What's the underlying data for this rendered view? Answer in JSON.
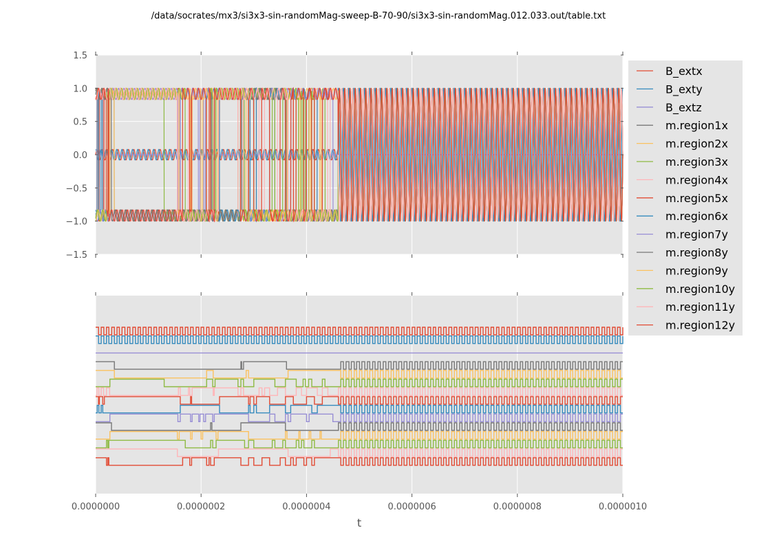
{
  "chart_data": [
    {
      "type": "line",
      "panel": "top",
      "title": "/data/socrates/mx3/si3x3-sin-randomMag-sweep-B-70-90/si3x3-sin-randomMag.012.033.out/table.txt",
      "xlabel": "t",
      "ylabel": "",
      "xlim": [
        0,
        1e-06
      ],
      "ylim": [
        -1.5,
        1.5
      ],
      "yticks": [
        "1.5",
        "1.0",
        "0.5",
        "0.0",
        "−0.5",
        "−1.0",
        "−1.5"
      ],
      "ytick_values": [
        1.5,
        1.0,
        0.5,
        0.0,
        -0.5,
        -1.0,
        -1.5
      ],
      "grid": true,
      "description": "Magnetization components switching between approx +1 and -1 with oscillation; B_ext components oscillate around 0 with amplitude ~0.08 until t~4.6e-7, after which all signals oscillate fully between -1 and 1",
      "series_summary": [
        {
          "name": "B_extx",
          "range": [
            -0.08,
            0.08
          ],
          "periods_per_us": 100
        },
        {
          "name": "B_exty",
          "range": [
            -0.08,
            0.08
          ],
          "periods_per_us": 100
        },
        {
          "name": "B_extz",
          "range": [
            0.0,
            0.0
          ]
        },
        {
          "name": "m.region*",
          "range": [
            -1.0,
            1.0
          ],
          "note": "bistable switching before 4.6e-7 s, full oscillation afterwards"
        }
      ]
    },
    {
      "type": "line",
      "panel": "bottom",
      "xlabel": "t",
      "xlim": [
        0,
        1e-06
      ],
      "xticks": [
        "0.0000000",
        "0.0000002",
        "0.0000004",
        "0.0000006",
        "0.0000008",
        "0.0000010"
      ],
      "xtick_values": [
        0,
        2e-07,
        4e-07,
        6e-07,
        8e-07,
        1e-06
      ],
      "grid": true,
      "description": "Digital (sign) traces of each signal, vertically offset",
      "oscillation_onset_t": 4.6e-07,
      "oscillation_periods_per_us": 100,
      "traces": [
        {
          "name": "B_extx",
          "level_order": 0,
          "mode": "clock"
        },
        {
          "name": "B_exty",
          "level_order": 1,
          "mode": "clock"
        },
        {
          "name": "B_extz",
          "level_order": 2,
          "mode": "const"
        },
        {
          "name": "m.region1x",
          "level_order": 3,
          "initial": 1,
          "switch_times": [
            3.5e-08,
            2.75e-07,
            2.77e-07,
            2.8e-07,
            3.62e-07,
            4.7e-07
          ]
        },
        {
          "name": "m.region2x",
          "level_order": 4,
          "initial": 1,
          "switch_times": [
            3.5e-08,
            2.1e-07,
            2.23e-07,
            2.85e-07,
            2.9e-07,
            3.65e-07,
            4.7e-07
          ]
        },
        {
          "name": "m.region3x",
          "level_order": 5,
          "initial": 0,
          "switch_times": [
            2.7e-08,
            1.3e-07,
            2.1e-07,
            2.22e-07,
            2.26e-07,
            2.7e-07,
            2.75e-07,
            2.8e-07,
            3e-07,
            3.4e-07,
            3.6e-07,
            3.8e-07,
            3.93e-07,
            3.98e-07,
            4.04e-07,
            4.1e-07,
            4.3e-07,
            4.35e-07,
            4.7e-07
          ]
        },
        {
          "name": "m.region4x",
          "level_order": 6,
          "initial": 0,
          "switch_times": [
            2e-09,
            6e-09,
            1e-08,
            1.5e-08,
            2e-08,
            2.6e-08,
            1.57e-07,
            1.6e-07,
            1.76e-07,
            1.78e-07,
            1.83e-07,
            2.23e-07,
            2.25e-07,
            2.7e-07,
            2.75e-07,
            2.8e-07,
            3.1e-07,
            3.15e-07,
            3.2e-07,
            3.3e-07,
            3.45e-07,
            3.6e-07,
            3.8e-07,
            3.9e-07,
            4e-07,
            4.2e-07,
            4.3e-07,
            4.4e-07,
            4.6e-07
          ]
        },
        {
          "name": "m.region5x",
          "level_order": 7,
          "initial": 1,
          "switch_times": [
            5e-09,
            7e-09,
            1.3e-08,
            1.6e-08,
            1.6e-07,
            1.8e-07,
            1.82e-07,
            2.35e-07,
            2.9e-07,
            2.93e-07,
            3e-07,
            3.05e-07,
            3.3e-07,
            3.6e-07,
            3.75e-07,
            4e-07,
            4.15e-07,
            4.3e-07,
            4.7e-07
          ]
        },
        {
          "name": "m.region6x",
          "level_order": 8,
          "initial": 0,
          "switch_times": [
            3e-09,
            6e-09,
            1e-08,
            1.3e-08,
            1.6e-07,
            2.35e-07,
            2.9e-07,
            2.93e-07,
            3e-07,
            3.05e-07,
            3.3e-07,
            3.6e-07,
            3.7e-07,
            4.1e-07,
            4.2e-07,
            4.6e-07
          ]
        },
        {
          "name": "m.region7y",
          "level_order": 9,
          "initial": 0,
          "switch_times": [
            2.7e-08,
            1.56e-07,
            1.6e-07,
            1.8e-07,
            1.83e-07,
            1.95e-07,
            1.98e-07,
            2.05e-07,
            2.08e-07,
            2.22e-07,
            2.25e-07,
            2.9e-07,
            3.3e-07,
            3.4e-07,
            3.6e-07,
            3.65e-07,
            3.7e-07,
            4e-07,
            4.05e-07,
            4.5e-07,
            4.6e-07
          ]
        },
        {
          "name": "m.region8y",
          "level_order": 10,
          "initial": 1,
          "switch_times": [
            3e-08,
            2.18e-07,
            2.2e-07,
            2.75e-07,
            3.6e-07,
            4.7e-07
          ]
        },
        {
          "name": "m.region9y",
          "level_order": 11,
          "initial": 0,
          "switch_times": [
            2.7e-08,
            1.55e-07,
            1.58e-07,
            1.8e-07,
            1.83e-07,
            2e-07,
            2.03e-07,
            2.28e-07,
            2.32e-07,
            2.9e-07,
            3.6e-07,
            3.63e-07,
            3.85e-07,
            3.88e-07,
            4.05e-07,
            4.08e-07,
            4.25e-07,
            4.28e-07,
            4.6e-07
          ]
        },
        {
          "name": "m.region10y",
          "level_order": 12,
          "initial": 0,
          "switch_times": [
            2e-08,
            2.3e-08,
            2.5e-08,
            1.7e-07,
            2.18e-07,
            2.22e-07,
            2.28e-07,
            2.82e-07,
            2.9e-07,
            3e-07,
            3.35e-07,
            3.4e-07,
            3.55e-07,
            3.6e-07,
            3.8e-07,
            3.85e-07,
            3.9e-07,
            3.95e-07,
            4.1e-07,
            4.15e-07,
            4.6e-07
          ]
        },
        {
          "name": "m.region11y",
          "level_order": 13,
          "initial": 1,
          "switch_times": [
            1.55e-07,
            2.33e-07,
            3.65e-07,
            4.45e-07,
            4.7e-07
          ]
        },
        {
          "name": "m.region12y",
          "level_order": 14,
          "initial": 1,
          "switch_times": [
            2e-08,
            2.3e-08,
            2.5e-08,
            1.65e-07,
            1.78e-07,
            1.82e-07,
            2.1e-07,
            2.15e-07,
            2.18e-07,
            2.25e-07,
            2.75e-07,
            2.9e-07,
            3e-07,
            3.15e-07,
            3.3e-07,
            3.5e-07,
            3.6e-07,
            3.7e-07,
            3.75e-07,
            3.8e-07,
            3.95e-07,
            4e-07,
            4.1e-07,
            4.15e-07,
            4.6e-07
          ]
        }
      ]
    }
  ],
  "legend": {
    "placement": "outside-right",
    "entries": [
      {
        "label": "B_extx",
        "color": "#E24A33"
      },
      {
        "label": "B_exty",
        "color": "#348ABD"
      },
      {
        "label": "B_extz",
        "color": "#988ED5"
      },
      {
        "label": "m.region1x",
        "color": "#777777"
      },
      {
        "label": "m.region2x",
        "color": "#FBC15E"
      },
      {
        "label": "m.region3x",
        "color": "#8EBA42"
      },
      {
        "label": "m.region4x",
        "color": "#FFB5B8"
      },
      {
        "label": "m.region5x",
        "color": "#E24A33"
      },
      {
        "label": "m.region6x",
        "color": "#348ABD"
      },
      {
        "label": "m.region7y",
        "color": "#988ED5"
      },
      {
        "label": "m.region8y",
        "color": "#777777"
      },
      {
        "label": "m.region9y",
        "color": "#FBC15E"
      },
      {
        "label": "m.region10y",
        "color": "#8EBA42"
      },
      {
        "label": "m.region11y",
        "color": "#FFB5B8"
      },
      {
        "label": "m.region12y",
        "color": "#E24A33"
      }
    ]
  },
  "style": {
    "axes_bg": "#E5E5E5",
    "grid_color": "#FFFFFF",
    "tick_color": "#555555",
    "legend_bg": "#E5E5E5"
  }
}
